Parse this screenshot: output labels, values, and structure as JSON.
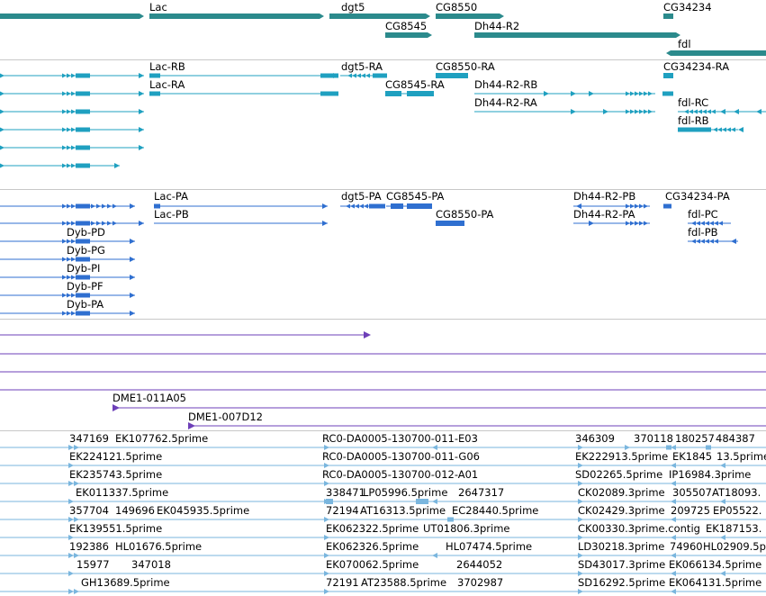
{
  "colors": {
    "gene": "#2b8a8c",
    "mrna": "#1fa0c0",
    "cdna": "#2f6fd0",
    "bac": "#6d3fb8",
    "est": "#7ab6de",
    "separator": "#c8c8c8"
  },
  "tracks": [
    {
      "id": "genes",
      "color": "#2b8a8c",
      "labels": [
        {
          "name": "label-lac",
          "text": "Lac"
        },
        {
          "name": "label-dgt5",
          "text": "dgt5"
        },
        {
          "name": "label-cg8550",
          "text": "CG8550"
        },
        {
          "name": "label-cg34234",
          "text": "CG34234"
        },
        {
          "name": "label-cg8545",
          "text": "CG8545"
        },
        {
          "name": "label-dh44-r2",
          "text": "Dh44-R2"
        },
        {
          "name": "label-fdl",
          "text": "fdl"
        }
      ]
    },
    {
      "id": "mrna-transcripts",
      "color": "#1fa0c0",
      "labels": [
        {
          "name": "label-lac-rb",
          "text": "Lac-RB"
        },
        {
          "name": "label-dgt5-ra",
          "text": "dgt5-RA"
        },
        {
          "name": "label-cg8550-ra",
          "text": "CG8550-RA"
        },
        {
          "name": "label-cg34234-ra",
          "text": "CG34234-RA"
        },
        {
          "name": "label-lac-ra",
          "text": "Lac-RA"
        },
        {
          "name": "label-cg8545-ra",
          "text": "CG8545-RA"
        },
        {
          "name": "label-dh44-r2-rb",
          "text": "Dh44-R2-RB"
        },
        {
          "name": "label-dh44-r2-ra",
          "text": "Dh44-R2-RA"
        },
        {
          "name": "label-fdl-rc",
          "text": "fdl-RC"
        },
        {
          "name": "label-fdl-rb",
          "text": "fdl-RB"
        }
      ]
    },
    {
      "id": "protein-transcripts",
      "color": "#2f6fd0",
      "labels": [
        {
          "name": "label-lac-pa",
          "text": "Lac-PA"
        },
        {
          "name": "label-dgt5-pa",
          "text": "dgt5-PA"
        },
        {
          "name": "label-cg8545-pa",
          "text": "CG8545-PA"
        },
        {
          "name": "label-dh44-r2-pb",
          "text": "Dh44-R2-PB"
        },
        {
          "name": "label-cg34234-pa",
          "text": "CG34234-PA"
        },
        {
          "name": "label-lac-pb",
          "text": "Lac-PB"
        },
        {
          "name": "label-cg8550-pa",
          "text": "CG8550-PA"
        },
        {
          "name": "label-dh44-r2-pa",
          "text": "Dh44-R2-PA"
        },
        {
          "name": "label-fdl-pc",
          "text": "fdl-PC"
        },
        {
          "name": "label-dyb-pd",
          "text": "Dyb-PD"
        },
        {
          "name": "label-fdl-pb",
          "text": "fdl-PB"
        },
        {
          "name": "label-dyb-pg",
          "text": "Dyb-PG"
        },
        {
          "name": "label-dyb-pi",
          "text": "Dyb-PI"
        },
        {
          "name": "label-dyb-pf",
          "text": "Dyb-PF"
        },
        {
          "name": "label-dyb-pa",
          "text": "Dyb-PA"
        }
      ]
    },
    {
      "id": "bac-clones",
      "color": "#6d3fb8",
      "labels": [
        {
          "name": "label-dme1-011a05",
          "text": "DME1-011A05"
        },
        {
          "name": "label-dme1-007d12",
          "text": "DME1-007D12"
        }
      ]
    },
    {
      "id": "est-alignments",
      "color": "#7ab6de",
      "labels": [
        {
          "name": "label-est-347169",
          "text": "347169"
        },
        {
          "name": "label-est-ek107762",
          "text": "EK107762.5prime"
        },
        {
          "name": "label-est-rc0-e03",
          "text": "RC0-DA0005-130700-011-E03"
        },
        {
          "name": "label-est-346309",
          "text": "346309"
        },
        {
          "name": "label-est-370118",
          "text": "370118"
        },
        {
          "name": "label-est-180257",
          "text": "180257"
        },
        {
          "name": "label-est-484387",
          "text": "484387"
        },
        {
          "name": "label-est-ek224121",
          "text": "EK224121.5prime"
        },
        {
          "name": "label-est-rc0-g06",
          "text": "RC0-DA0005-130700-011-G06"
        },
        {
          "name": "label-est-ek222913",
          "text": "EK222913.5prime"
        },
        {
          "name": "label-est-ek1845",
          "text": "EK1845"
        },
        {
          "name": "label-est-13-5prime",
          "text": "13.5prime"
        },
        {
          "name": "label-est-ek235743",
          "text": "EK235743.5prime"
        },
        {
          "name": "label-est-rc0-a01",
          "text": "RC0-DA0005-130700-012-A01"
        },
        {
          "name": "label-est-sd02265",
          "text": "SD02265.5prime"
        },
        {
          "name": "label-est-ip16984",
          "text": "IP16984.3prime"
        },
        {
          "name": "label-est-ek011337",
          "text": "EK011337.5prime"
        },
        {
          "name": "label-est-338471",
          "text": "338471"
        },
        {
          "name": "label-est-lp05996",
          "text": "LP05996.5prime"
        },
        {
          "name": "label-est-2647317",
          "text": "2647317"
        },
        {
          "name": "label-est-ck02089",
          "text": "CK02089.3prime"
        },
        {
          "name": "label-est-305507",
          "text": "305507"
        },
        {
          "name": "label-est-at18093",
          "text": "AT18093."
        },
        {
          "name": "label-est-357704",
          "text": "357704"
        },
        {
          "name": "label-est-149696",
          "text": "149696"
        },
        {
          "name": "label-est-ek045935",
          "text": "EK045935.5prime"
        },
        {
          "name": "label-est-72194",
          "text": "72194"
        },
        {
          "name": "label-est-at16313",
          "text": "AT16313.5prime"
        },
        {
          "name": "label-est-ec28440",
          "text": "EC28440.5prime"
        },
        {
          "name": "label-est-ck02429",
          "text": "CK02429.3prime"
        },
        {
          "name": "label-est-209725",
          "text": "209725"
        },
        {
          "name": "label-est-ep05522",
          "text": "EP05522."
        },
        {
          "name": "label-est-ek139551",
          "text": "EK139551.5prime"
        },
        {
          "name": "label-est-ek062322",
          "text": "EK062322.5prime"
        },
        {
          "name": "label-est-ut01806",
          "text": "UT01806.3prime"
        },
        {
          "name": "label-est-ck00330",
          "text": "CK00330.3prime.contig"
        },
        {
          "name": "label-est-ek187153",
          "text": "EK187153."
        },
        {
          "name": "label-est-192386",
          "text": "192386"
        },
        {
          "name": "label-est-hl01676",
          "text": "HL01676.5prime"
        },
        {
          "name": "label-est-ek062326",
          "text": "EK062326.5prime"
        },
        {
          "name": "label-est-hl07474",
          "text": "HL07474.5prime"
        },
        {
          "name": "label-est-ld30218",
          "text": "LD30218.3prime"
        },
        {
          "name": "label-est-74960",
          "text": "74960"
        },
        {
          "name": "label-est-hl02909",
          "text": "HL02909.5p"
        },
        {
          "name": "label-est-15977",
          "text": "15977"
        },
        {
          "name": "label-est-347018",
          "text": "347018"
        },
        {
          "name": "label-est-ek070062",
          "text": "EK070062.5prime"
        },
        {
          "name": "label-est-2644052",
          "text": "2644052"
        },
        {
          "name": "label-est-sd43017",
          "text": "SD43017.3prime"
        },
        {
          "name": "label-est-ek066134",
          "text": "EK066134.5prime"
        },
        {
          "name": "label-est-gh13689",
          "text": "GH13689.5prime"
        },
        {
          "name": "label-est-72191",
          "text": "72191"
        },
        {
          "name": "label-est-at23588",
          "text": "AT23588.5prime"
        },
        {
          "name": "label-est-3702987",
          "text": "3702987"
        },
        {
          "name": "label-est-sd16292",
          "text": "SD16292.5prime"
        },
        {
          "name": "label-est-ek064131",
          "text": "EK064131.5prime"
        }
      ]
    }
  ]
}
